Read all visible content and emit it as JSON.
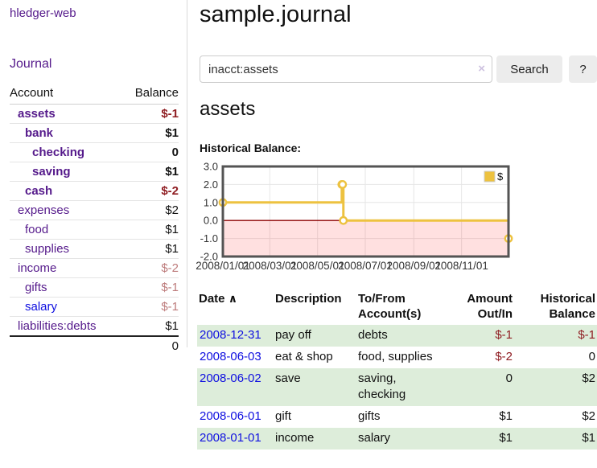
{
  "app": {
    "title": "hledger-web",
    "nav_journal": "Journal"
  },
  "sidebar": {
    "table_headers": {
      "account": "Account",
      "balance": "Balance"
    },
    "accounts": [
      {
        "name": "assets",
        "depth": 0,
        "bold": true,
        "balance": "$-1",
        "balance_style": "neg"
      },
      {
        "name": "bank",
        "depth": 1,
        "bold": true,
        "balance": "$1",
        "balance_style": "pos"
      },
      {
        "name": "checking",
        "depth": 2,
        "bold": true,
        "balance": "0",
        "balance_style": "pos"
      },
      {
        "name": "saving",
        "depth": 2,
        "bold": true,
        "balance": "$1",
        "balance_style": "pos"
      },
      {
        "name": "cash",
        "depth": 1,
        "bold": true,
        "balance": "$-2",
        "balance_style": "neg"
      },
      {
        "name": "expenses",
        "depth": 0,
        "bold": false,
        "balance": "$2",
        "balance_style": "pos"
      },
      {
        "name": "food",
        "depth": 1,
        "bold": false,
        "balance": "$1",
        "balance_style": "pos"
      },
      {
        "name": "supplies",
        "depth": 1,
        "bold": false,
        "balance": "$1",
        "balance_style": "pos"
      },
      {
        "name": "income",
        "depth": 0,
        "bold": false,
        "balance": "$-2",
        "balance_style": "neg-muted"
      },
      {
        "name": "gifts",
        "depth": 1,
        "bold": false,
        "balance": "$-1",
        "balance_style": "neg-muted"
      },
      {
        "name": "salary",
        "depth": 1,
        "bold": false,
        "link_style": "unvisited",
        "balance": "$-1",
        "balance_style": "neg-muted"
      },
      {
        "name": "liabilities:debts",
        "depth": 0,
        "bold": false,
        "balance": "$1",
        "balance_style": "pos"
      }
    ],
    "total": "0"
  },
  "main": {
    "title": "sample.journal",
    "search": {
      "value": "inacct:assets",
      "clear_icon": "×",
      "button": "Search",
      "help_button": "?"
    },
    "account_heading": "assets",
    "chart_label": "Historical Balance:"
  },
  "chart_data": {
    "type": "line",
    "title": "Historical Balance:",
    "series": [
      {
        "name": "$",
        "color": "#edc240",
        "step": true,
        "points": [
          {
            "date": "2008-01-01",
            "value": 1
          },
          {
            "date": "2008-06-01",
            "value": 2
          },
          {
            "date": "2008-06-02",
            "value": 2
          },
          {
            "date": "2008-06-03",
            "value": 0
          },
          {
            "date": "2008-12-31",
            "value": -1
          }
        ]
      }
    ],
    "x_range": [
      "2008-01-01",
      "2008-12-31"
    ],
    "ylim": [
      -2,
      3
    ],
    "yticks": [
      "3.0",
      "2.0",
      "1.0",
      "0.0",
      "-1.0",
      "-2.0"
    ],
    "xticks": [
      "2008/01/01",
      "2008/03/01",
      "2008/05/01",
      "2008/07/01",
      "2008/09/01",
      "2008/11/01"
    ],
    "legend": {
      "label": "$",
      "position": "top-right"
    },
    "grid": true,
    "colors": {
      "border": "#545454",
      "gridline": "#e6e6e6",
      "negative_region": "rgba(255,0,0,0.12)",
      "zero_line": "#8d0000",
      "marker_fill": "#ffffff"
    }
  },
  "register": {
    "headers": {
      "date": "Date",
      "description": "Description",
      "tofrom": "To/From Account(s)",
      "amount": "Amount Out/In",
      "balance": "Historical Balance"
    },
    "sort_icon": "∧",
    "rows": [
      {
        "date": "2008-12-31",
        "description": "pay off",
        "accounts": "debts",
        "amount": "$-1",
        "amount_neg": true,
        "balance": "$-1",
        "balance_neg": true,
        "highlight": true
      },
      {
        "date": "2008-06-03",
        "description": "eat & shop",
        "accounts": "food, supplies",
        "amount": "$-2",
        "amount_neg": true,
        "balance": "0",
        "balance_neg": false,
        "highlight": false
      },
      {
        "date": "2008-06-02",
        "description": "save",
        "accounts": "saving, checking",
        "amount": "0",
        "amount_neg": false,
        "balance": "$2",
        "balance_neg": false,
        "highlight": true
      },
      {
        "date": "2008-06-01",
        "description": "gift",
        "accounts": "gifts",
        "amount": "$1",
        "amount_neg": false,
        "balance": "$2",
        "balance_neg": false,
        "highlight": false
      },
      {
        "date": "2008-01-01",
        "description": "income",
        "accounts": "salary",
        "amount": "$1",
        "amount_neg": false,
        "balance": "$1",
        "balance_neg": false,
        "highlight": true
      }
    ]
  }
}
